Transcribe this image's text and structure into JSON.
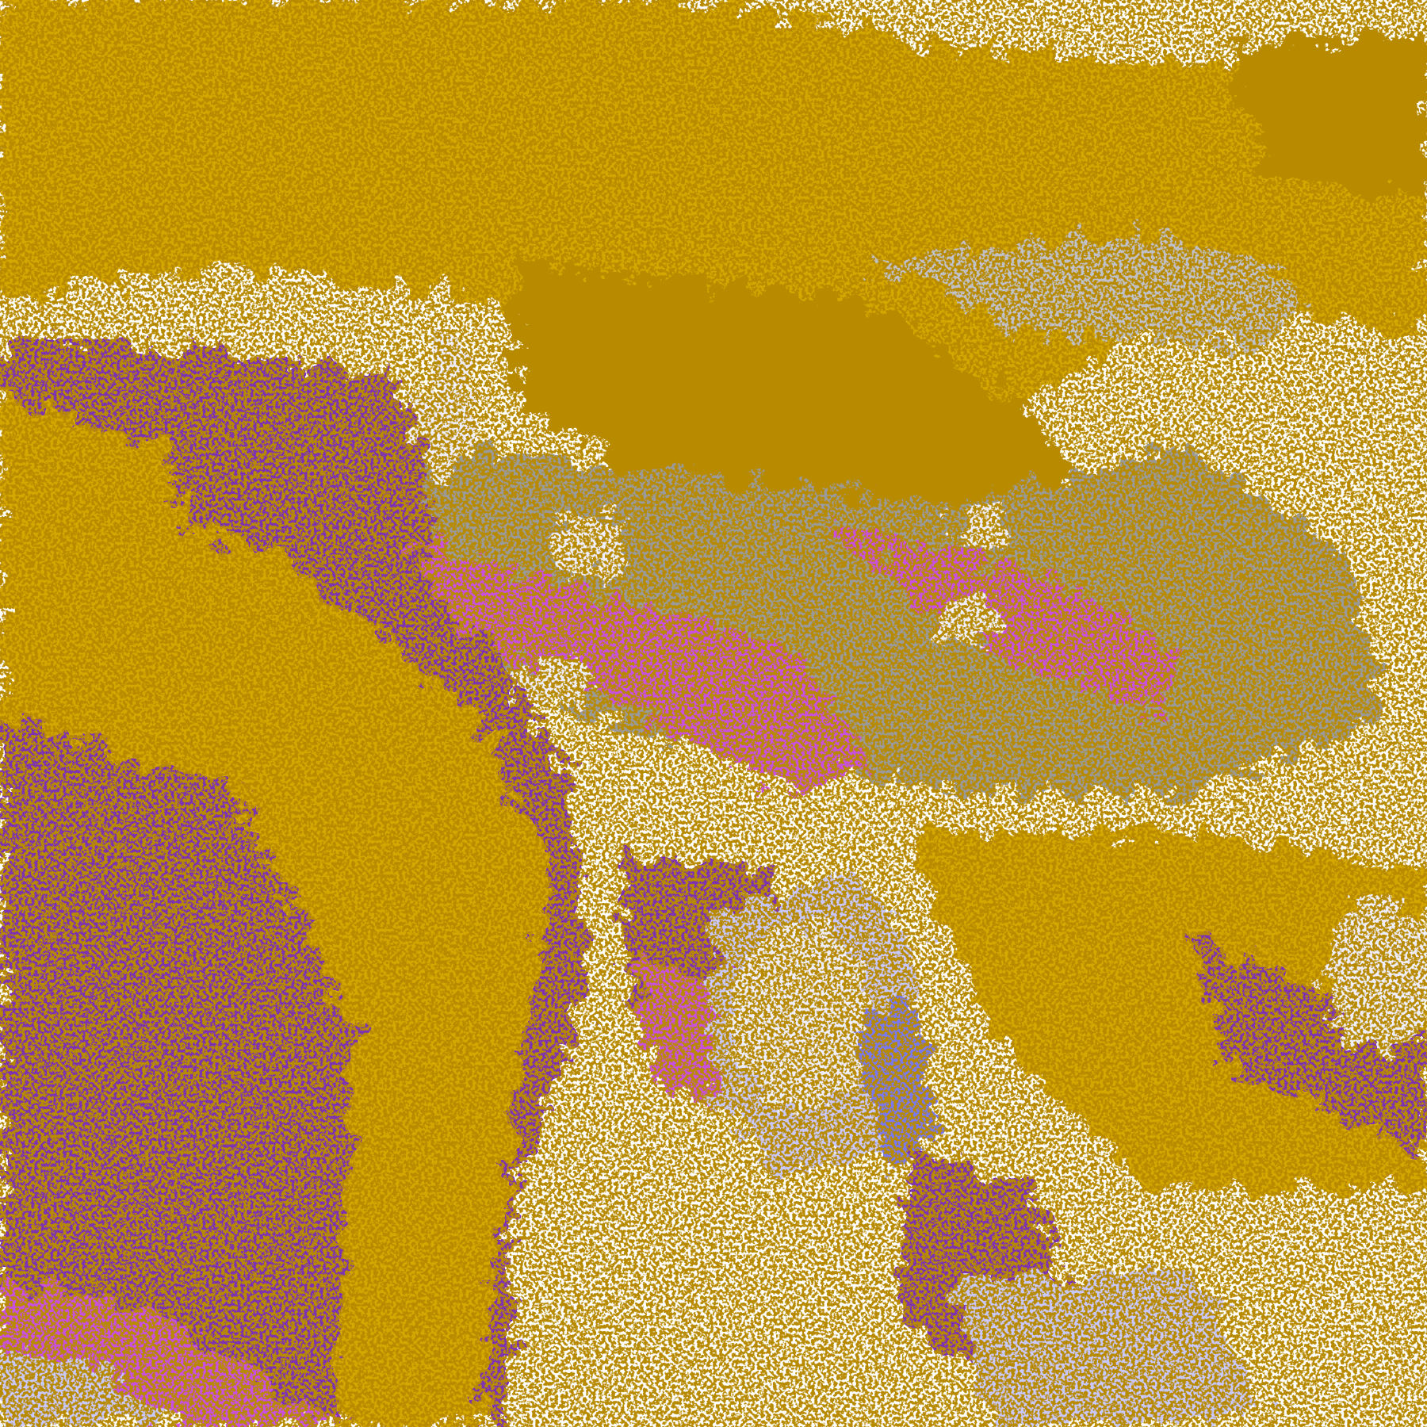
{
  "map": {
    "type": "satellite cloud classification image",
    "palette": {
      "background": "#ffffff",
      "gold": "#d4a800",
      "dark_gold": "#b88a00",
      "purple": "#7b33b3",
      "magenta": "#c84fe0",
      "gray": "#9a9a9a",
      "light_gray": "#c0c0c8",
      "lavender": "#c8c8ff",
      "blue": "#7878f0",
      "pale": "#eeeeff"
    }
  }
}
